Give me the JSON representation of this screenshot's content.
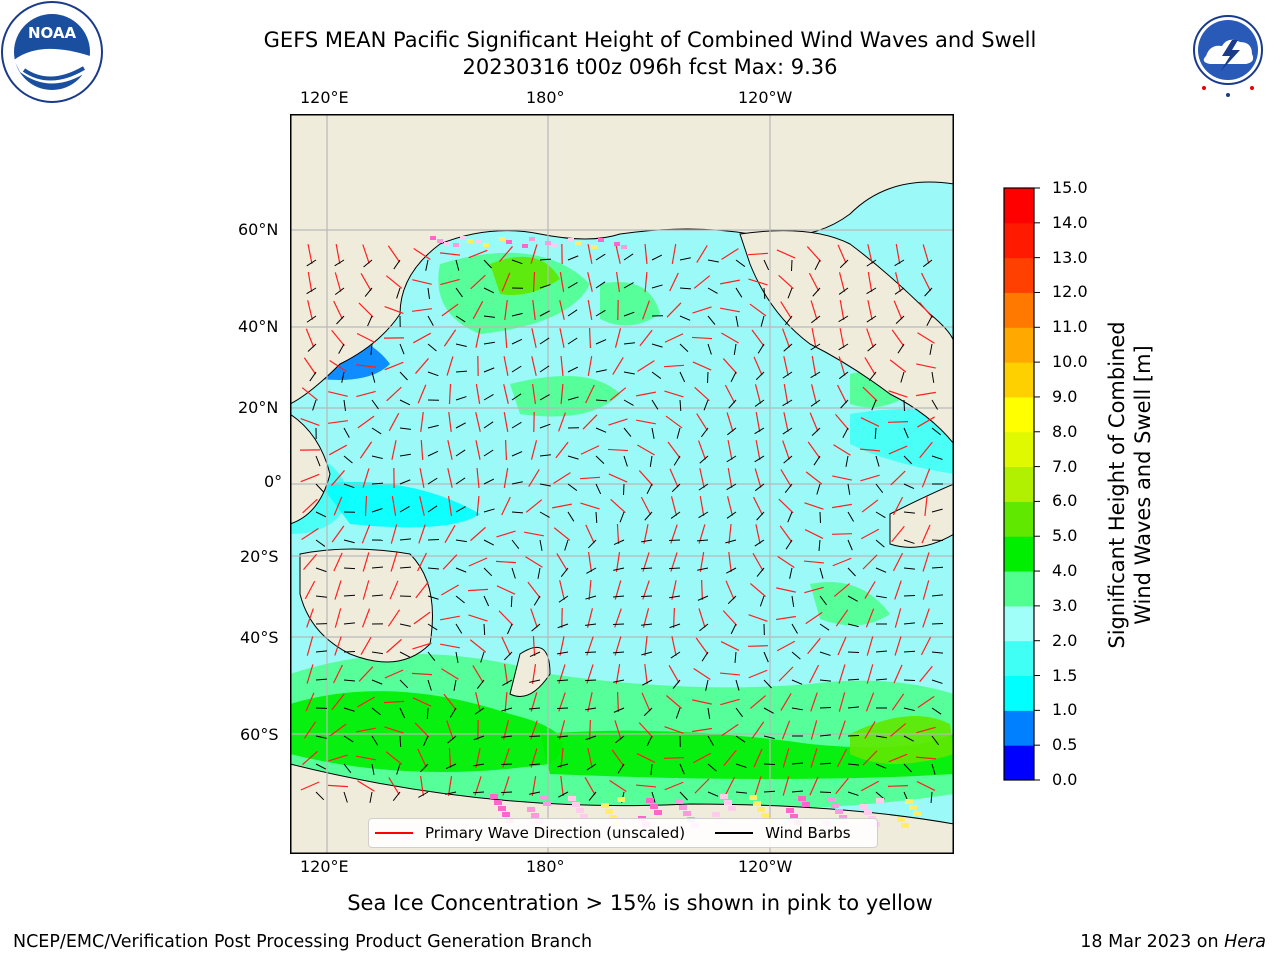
{
  "title": {
    "line1": "GEFS MEAN Pacific Significant Height of Combined Wind Waves and Swell",
    "line2": "20230316 t00z 096h fcst   Max: 9.36"
  },
  "logos": {
    "noaa_text": "NOAA",
    "noaa_ring": "NATIONAL OCEANIC AND ATMOSPHERIC ADMINISTRATION · U.S. DEPARTMENT OF COMMERCE",
    "nws_ring": "NATIONAL WEATHER SERVICE"
  },
  "map": {
    "lon_ticks_top": [
      "120°E",
      "180°",
      "120°W"
    ],
    "lon_ticks_bottom": [
      "120°E",
      "180°",
      "120°W"
    ],
    "lat_ticks": [
      "60°N",
      "40°N",
      "20°N",
      "0°",
      "20°S",
      "40°S",
      "60°S"
    ],
    "colors": {
      "land": "#f0ecdc",
      "ocean_base": "#9bfaf8",
      "grid": "#b8b8b8",
      "wave_arrow": "#ff1f1f",
      "wind_barb": "#000000"
    }
  },
  "legend": {
    "wave_dir": "Primary Wave Direction (unscaled)",
    "wind_barbs": "Wind Barbs",
    "wave_color": "#ff0000",
    "barb_color": "#000000"
  },
  "colorbar": {
    "title_line1": "Significant Height of Combined",
    "title_line2": "Wind Waves and Swell [m]",
    "ticks": [
      "0.0",
      "0.5",
      "1.0",
      "1.5",
      "2.0",
      "3.0",
      "4.0",
      "5.0",
      "6.0",
      "7.0",
      "8.0",
      "9.0",
      "10.0",
      "11.0",
      "12.0",
      "13.0",
      "14.0",
      "15.0"
    ],
    "colors": [
      "#0000ff",
      "#0080ff",
      "#00ffff",
      "#40fff5",
      "#a0fff8",
      "#50ff90",
      "#00ee00",
      "#60e800",
      "#b0f000",
      "#e0f800",
      "#ffff00",
      "#ffd000",
      "#ffa800",
      "#ff7800",
      "#ff4000",
      "#ff1a00",
      "#ff0000"
    ]
  },
  "sea_ice_note": "Sea Ice Concentration > 15% is shown in pink to yellow",
  "footer": {
    "left": "NCEP/EMC/Verification Post Processing Product Generation Branch",
    "right_date": "18 Mar 2023 on ",
    "right_machine": "Hera"
  }
}
